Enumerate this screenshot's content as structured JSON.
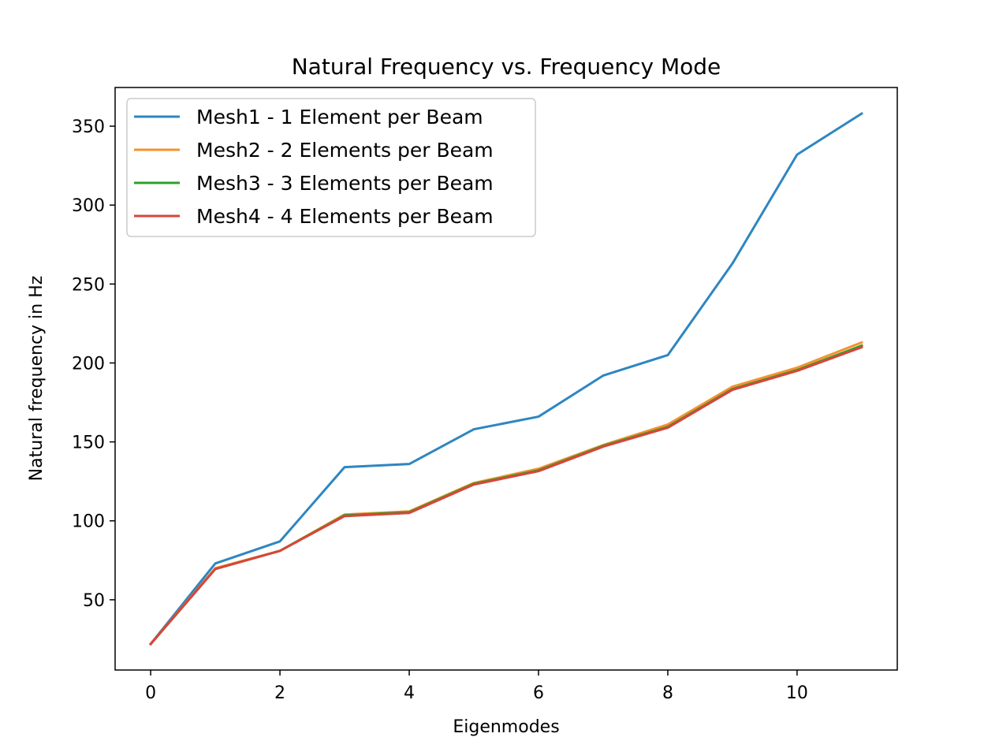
{
  "chart_data": {
    "type": "line",
    "title": "Natural Frequency vs. Frequency Mode",
    "xlabel": "Eigenmodes",
    "ylabel": "Natural frequency in Hz",
    "x": [
      0,
      1,
      2,
      3,
      4,
      5,
      6,
      7,
      8,
      9,
      10,
      11
    ],
    "xlim": [
      -0.55,
      11.55
    ],
    "ylim": [
      5.5,
      374.5
    ],
    "xticks": [
      0,
      2,
      4,
      6,
      8,
      10
    ],
    "yticks": [
      50,
      100,
      150,
      200,
      250,
      300,
      350
    ],
    "grid": false,
    "legend_position": "upper-left",
    "series": [
      {
        "name": "Mesh1 - 1 Element per Beam",
        "color": "#2e86c1",
        "values": [
          22,
          73,
          87,
          134,
          136,
          158,
          166,
          192,
          205,
          263,
          332,
          358
        ]
      },
      {
        "name": "Mesh2 - 2 Elements per Beam",
        "color": "#f5922f",
        "values": [
          22,
          70,
          81,
          104,
          106,
          124,
          133,
          148,
          161,
          185,
          197,
          213
        ]
      },
      {
        "name": "Mesh3 - 3 Elements per Beam",
        "color": "#2ca02c",
        "values": [
          22,
          69.5,
          81,
          103.5,
          105.5,
          123.5,
          132,
          147.5,
          159.5,
          183.5,
          195.5,
          211
        ]
      },
      {
        "name": "Mesh4 - 4 Elements per Beam",
        "color": "#d9453a",
        "values": [
          22,
          69.5,
          81,
          103,
          105,
          123,
          131.5,
          147,
          159,
          183,
          195,
          210
        ]
      }
    ]
  }
}
